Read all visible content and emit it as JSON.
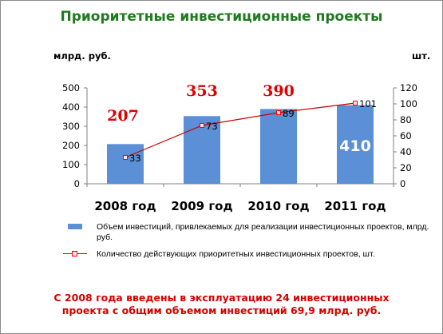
{
  "title": "Приоритетные инвестиционные проекты",
  "unit_left": "млрд. руб.",
  "unit_right": "шт.",
  "colors": {
    "bar": "#5b8fd6",
    "line": "#cc0000",
    "marker_edge": "#ff0000",
    "title": "#1f7a1f",
    "callout": "#e00000",
    "footer": "#d40000"
  },
  "chart_data": {
    "type": "bar",
    "categories": [
      "2008 год",
      "2009 год",
      "2010 год",
      "2011 год"
    ],
    "series": [
      {
        "name": "Объем инвестиций, привлекаемых для реализации инвестиционных проектов, млрд. руб.",
        "type": "bar",
        "axis": "left",
        "values": [
          207,
          353,
          390,
          410
        ]
      },
      {
        "name": "Количество действующих приоритетных инвестиционных проектов, шт.",
        "type": "line",
        "axis": "right",
        "values": [
          33,
          73,
          89,
          101
        ]
      }
    ],
    "left_axis": {
      "ylim": [
        0,
        500
      ],
      "ticks": [
        "0",
        "100",
        "200",
        "300",
        "400",
        "500"
      ]
    },
    "right_axis": {
      "ylim": [
        0,
        120
      ],
      "ticks": [
        "0",
        "20",
        "40",
        "60",
        "80",
        "100",
        "120"
      ]
    },
    "bar_labels": [
      "207",
      "353",
      "390",
      "410"
    ],
    "line_labels": [
      "33",
      "73",
      "89",
      "101"
    ],
    "grid": false,
    "legend_position": "bottom"
  },
  "footer": {
    "line1": "С 2008 года введены в эксплуатацию 24 инвестиционных",
    "line2": "проекта с общим объемом инвестиций 69,9 млрд. руб."
  }
}
